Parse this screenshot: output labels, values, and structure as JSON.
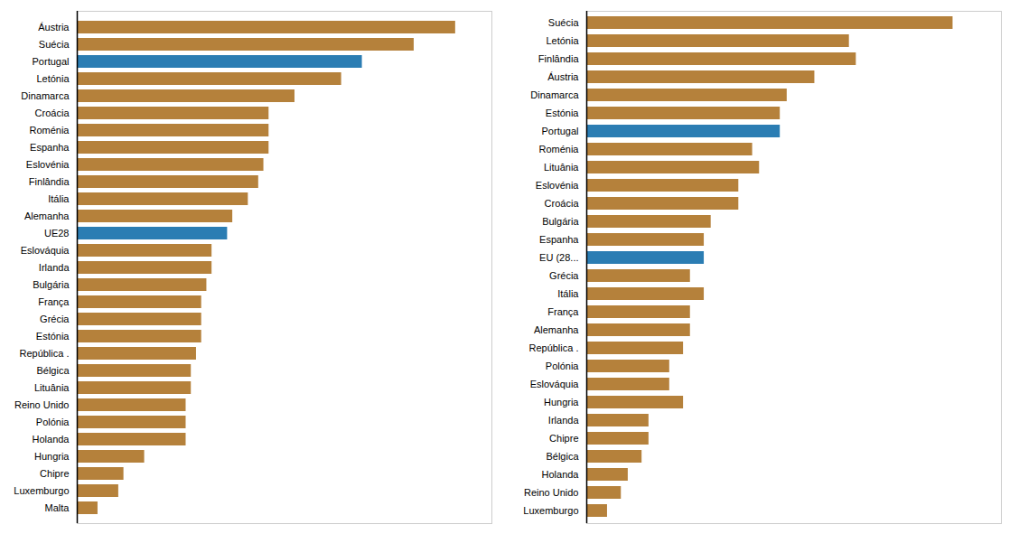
{
  "chart_data": [
    {
      "type": "bar",
      "orientation": "horizontal",
      "categories": [
        "Áustria",
        "Suécia",
        "Portugal",
        "Letónia",
        "Dinamarca",
        "Croácia",
        "Roménia",
        "Espanha",
        "Eslovénia",
        "Finlândia",
        "Itália",
        "Alemanha",
        "UE28",
        "Eslováquia",
        "Irlanda",
        "Bulgária",
        "França",
        "Grécia",
        "Estónia",
        "República .",
        "Bélgica",
        "Lituânia",
        "Reino Unido",
        "Polónia",
        "Holanda",
        "Hungria",
        "Chipre",
        "Luxemburgo",
        "Malta"
      ],
      "values": [
        73,
        65,
        55,
        51,
        42,
        37,
        37,
        37,
        36,
        35,
        33,
        30,
        29,
        26,
        26,
        25,
        24,
        24,
        24,
        23,
        22,
        22,
        21,
        21,
        21,
        13,
        9,
        8,
        4
      ],
      "colors": [
        "#b5813b",
        "#b5813b",
        "#2b7db3",
        "#b5813b",
        "#b5813b",
        "#b5813b",
        "#b5813b",
        "#b5813b",
        "#b5813b",
        "#b5813b",
        "#b5813b",
        "#b5813b",
        "#2b7db3",
        "#b5813b",
        "#b5813b",
        "#b5813b",
        "#b5813b",
        "#b5813b",
        "#b5813b",
        "#b5813b",
        "#b5813b",
        "#b5813b",
        "#b5813b",
        "#b5813b",
        "#b5813b",
        "#b5813b",
        "#b5813b",
        "#b5813b",
        "#b5813b"
      ],
      "xlim": [
        0,
        80
      ],
      "tick_labels": "y"
    },
    {
      "type": "bar",
      "orientation": "horizontal",
      "categories": [
        "Suécia",
        "Letónia",
        "Finlândia",
        "Áustria",
        "Dinamarca",
        "Estónia",
        "Portugal",
        "Roménia",
        "Lituânia",
        "Eslovénia",
        "Croácia",
        "Bulgária",
        "Espanha",
        "EU (28...",
        "Grécia",
        "Itália",
        "França",
        "Alemanha",
        "República .",
        "Polónia",
        "Eslováquia",
        "Hungria",
        "Irlanda",
        "Chipre",
        "Bélgica",
        "Holanda",
        "Reino Unido",
        "Luxemburgo"
      ],
      "values": [
        53,
        38,
        39,
        33,
        29,
        28,
        28,
        24,
        25,
        22,
        22,
        18,
        17,
        17,
        15,
        17,
        15,
        15,
        14,
        12,
        12,
        14,
        9,
        9,
        8,
        6,
        5,
        3
      ],
      "colors": [
        "#b5813b",
        "#b5813b",
        "#b5813b",
        "#b5813b",
        "#b5813b",
        "#b5813b",
        "#2b7db3",
        "#b5813b",
        "#b5813b",
        "#b5813b",
        "#b5813b",
        "#b5813b",
        "#b5813b",
        "#2b7db3",
        "#b5813b",
        "#b5813b",
        "#b5813b",
        "#b5813b",
        "#b5813b",
        "#b5813b",
        "#b5813b",
        "#b5813b",
        "#b5813b",
        "#b5813b",
        "#b5813b",
        "#b5813b",
        "#b5813b",
        "#b5813b"
      ],
      "xlim": [
        0,
        60
      ],
      "tick_labels": "y"
    }
  ]
}
